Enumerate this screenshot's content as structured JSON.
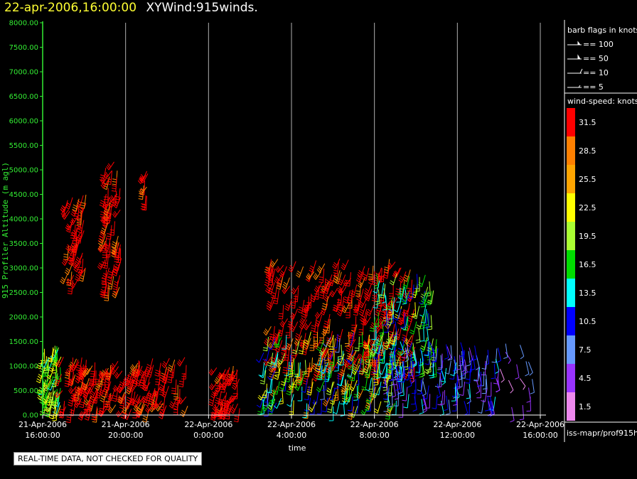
{
  "header": {
    "date": "22-apr-2006,16:00:00",
    "product": "XYWind:915winds."
  },
  "chart_data": {
    "type": "scatter",
    "title": "",
    "xlabel": "time",
    "ylabel": "915 Profiler Altitude (m agl)",
    "ylim": [
      0,
      8000
    ],
    "yticks": [
      "0.00",
      "500.00",
      "1000.00",
      "1500.00",
      "2000.00",
      "2500.00",
      "3000.00",
      "3500.00",
      "4000.00",
      "4500.00",
      "5000.00",
      "5500.00",
      "6000.00",
      "6500.00",
      "7000.00",
      "7500.00",
      "8000.00"
    ],
    "xlim_hours": [
      0,
      24
    ],
    "xticks": [
      {
        "hour": 0,
        "date": "21-Apr-2006",
        "time": "16:00:00"
      },
      {
        "hour": 4,
        "date": "21-Apr-2006",
        "time": "20:00:00"
      },
      {
        "hour": 8,
        "date": "22-Apr-2006",
        "time": "0:00:00"
      },
      {
        "hour": 12,
        "date": "22-Apr-2006",
        "time": "4:00:00"
      },
      {
        "hour": 16,
        "date": "22-Apr-2006",
        "time": "8:00:00"
      },
      {
        "hour": 20,
        "date": "22-Apr-2006",
        "time": "12:00:00"
      },
      {
        "hour": 24,
        "date": "22-Apr-2006",
        "time": "16:00:00"
      }
    ],
    "grid": "vertical",
    "regions": [
      {
        "t0": 0.0,
        "t1": 0.9,
        "z0": 150,
        "z1": 1450,
        "s0": 14,
        "s1": 24,
        "dir": 200,
        "n": 70
      },
      {
        "t0": 0.9,
        "t1": 7.0,
        "z0": 100,
        "z1": 1200,
        "s0": 29,
        "s1": 34,
        "dir": 210,
        "n": 190
      },
      {
        "t0": 1.2,
        "t1": 2.1,
        "z0": 2700,
        "z1": 4500,
        "s0": 29,
        "s1": 34,
        "dir": 210,
        "n": 50
      },
      {
        "t0": 3.0,
        "t1": 3.8,
        "z0": 2600,
        "z1": 5200,
        "s0": 29,
        "s1": 34,
        "dir": 210,
        "n": 70
      },
      {
        "t0": 4.8,
        "t1": 5.1,
        "z0": 4200,
        "z1": 5000,
        "s0": 29,
        "s1": 34,
        "dir": 210,
        "n": 8
      },
      {
        "t0": 8.3,
        "t1": 9.6,
        "z0": 100,
        "z1": 1000,
        "s0": 29,
        "s1": 34,
        "dir": 210,
        "n": 50
      },
      {
        "t0": 11.0,
        "t1": 18.0,
        "z0": 900,
        "z1": 3200,
        "s0": 29,
        "s1": 34,
        "dir": 210,
        "n": 260
      },
      {
        "t0": 10.6,
        "t1": 17.0,
        "z0": 150,
        "z1": 1700,
        "s0": 8,
        "s1": 30,
        "dir": 200,
        "n": 220
      },
      {
        "t0": 16.0,
        "t1": 19.0,
        "z0": 1000,
        "z1": 2900,
        "s0": 10,
        "s1": 22,
        "dir": 190,
        "n": 110
      },
      {
        "t0": 16.5,
        "t1": 22.0,
        "z0": 200,
        "z1": 1500,
        "s0": 3,
        "s1": 14,
        "dir": 170,
        "n": 150
      },
      {
        "t0": 22.0,
        "t1": 23.8,
        "z0": 150,
        "z1": 1900,
        "s0": 2,
        "s1": 8,
        "dir": 150,
        "n": 14
      }
    ],
    "barb_legend": {
      "title": "barb flags in knots",
      "entries": [
        "== 100",
        "== 50",
        "== 10",
        "== 5"
      ]
    },
    "color_legend": {
      "title": "wind-speed: knots",
      "bins": [
        {
          "label": "31.5",
          "color": "#ff0000"
        },
        {
          "label": "28.5",
          "color": "#ff8000"
        },
        {
          "label": "25.5",
          "color": "#ffa500"
        },
        {
          "label": "22.5",
          "color": "#ffff00"
        },
        {
          "label": "19.5",
          "color": "#aaff33"
        },
        {
          "label": "16.5",
          "color": "#00dd00"
        },
        {
          "label": "13.5",
          "color": "#00ffff"
        },
        {
          "label": "10.5",
          "color": "#0000ff"
        },
        {
          "label": "7.5",
          "color": "#6699ff"
        },
        {
          "label": "4.5",
          "color": "#9933ff"
        },
        {
          "label": "1.5",
          "color": "#ee88ee"
        }
      ]
    }
  },
  "footer": {
    "notice": "REAL-TIME DATA, NOT CHECKED FOR QUALITY",
    "source": "iss-mapr/prof915h"
  }
}
